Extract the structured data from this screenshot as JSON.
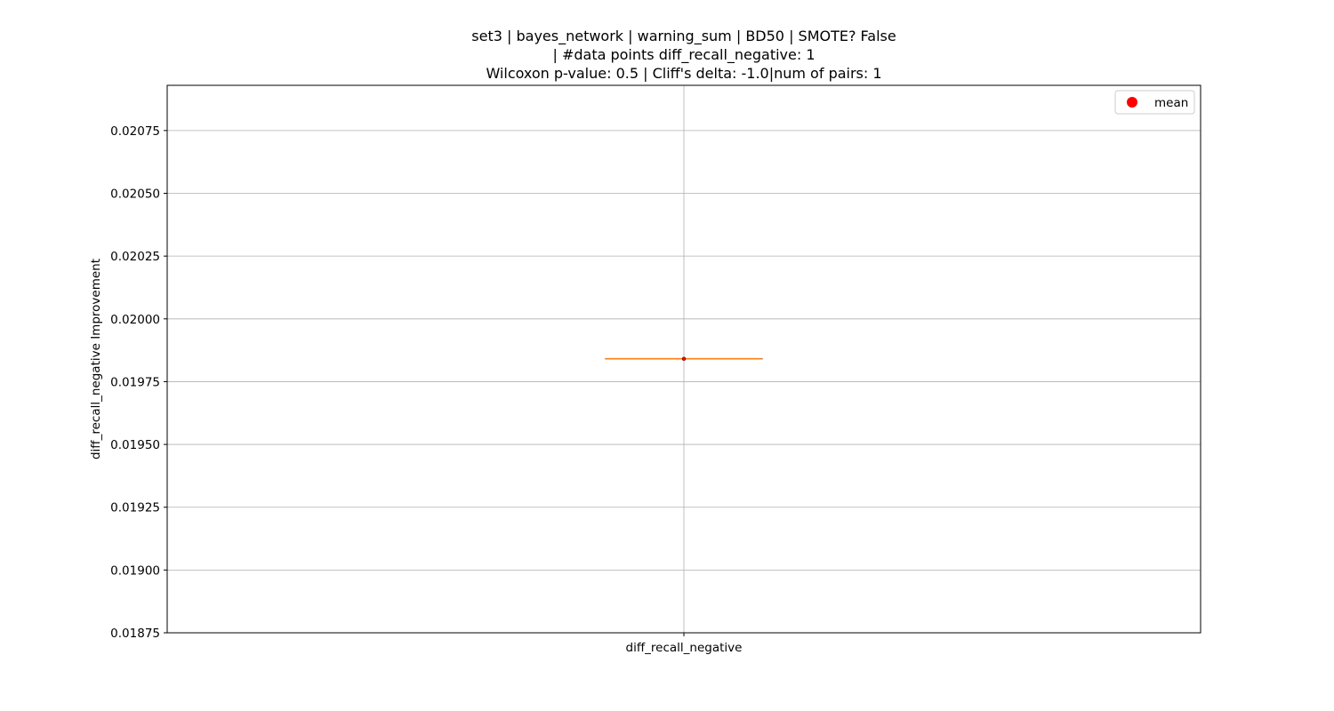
{
  "chart_data": {
    "type": "box",
    "title": [
      "set3 | bayes_network | warning_sum | BD50 | SMOTE? False",
      "| #data points diff_recall_negative: 1",
      "Wilcoxon p-value: 0.5 | Cliff's delta: -1.0|num of pairs: 1"
    ],
    "xlabel": "",
    "ylabel": "diff_recall_negative Improvement",
    "categories": [
      "diff_recall_negative"
    ],
    "ylim": [
      0.01875,
      0.02093
    ],
    "yticks": [
      0.01875,
      0.019,
      0.01925,
      0.0195,
      0.01975,
      0.02,
      0.02025,
      0.0205,
      0.02075
    ],
    "ytick_labels": [
      "0.01875",
      "0.01900",
      "0.01925",
      "0.01950",
      "0.01975",
      "0.02000",
      "0.02025",
      "0.02050",
      "0.02075"
    ],
    "series": [
      {
        "category": "diff_recall_negative",
        "q1": 0.019841,
        "median": 0.019841,
        "q3": 0.019841,
        "whisker_low": 0.019841,
        "whisker_high": 0.019841,
        "mean": 0.019841
      }
    ],
    "legend": {
      "position": "top-right",
      "entries": [
        "mean"
      ]
    },
    "grid": true,
    "colors": {
      "box": "#000000",
      "median": "#ff7f0e",
      "mean": "#ff0000",
      "grid": "#b0b0b0"
    }
  }
}
